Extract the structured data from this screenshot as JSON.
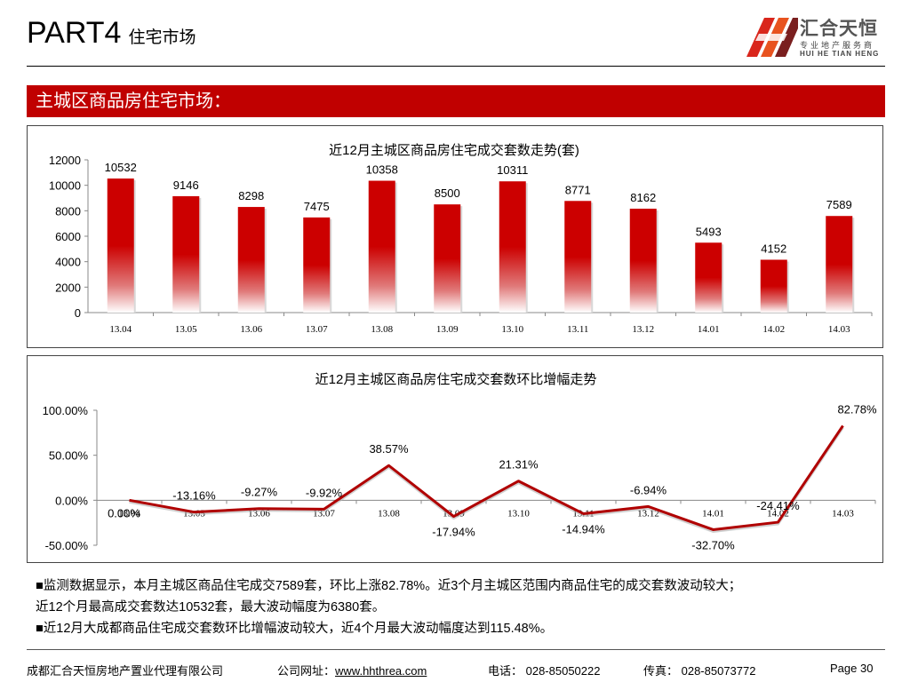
{
  "header": {
    "part": "PART4",
    "subtitle": "住宅市场"
  },
  "logo": {
    "name_cn": "汇合天恒",
    "tagline": "专业地产服务商",
    "name_en": "HUI HE TIAN HENG"
  },
  "section": {
    "title": "主城区商品房住宅市场："
  },
  "colors": {
    "accent": "#c00000",
    "logo_red": "#d9261c"
  },
  "chart_data": [
    {
      "type": "bar",
      "title": "近12月主城区商品房住宅成交套数走势(套)",
      "categories": [
        "13.04",
        "13.05",
        "13.06",
        "13.07",
        "13.08",
        "13.09",
        "13.10",
        "13.11",
        "13.12",
        "14.01",
        "14.02",
        "14.03"
      ],
      "values": [
        10532,
        9146,
        8298,
        7475,
        10358,
        8500,
        10311,
        8771,
        8162,
        5493,
        4152,
        7589
      ],
      "ylim": [
        0,
        12000
      ],
      "yticks": [
        "0",
        "2000",
        "4000",
        "6000",
        "8000",
        "10000",
        "12000"
      ],
      "data_labels": [
        "10532",
        "9146",
        "8298",
        "7475",
        "10358",
        "8500",
        "10311",
        "8771",
        "8162",
        "5493",
        "4152",
        "7589"
      ],
      "xlabel": "",
      "ylabel": "",
      "grid": false
    },
    {
      "type": "line",
      "title": "近12月主城区商品房住宅成交套数环比增幅走势",
      "categories": [
        "13.04",
        "13.05",
        "13.06",
        "13.07",
        "13.08",
        "13.09",
        "13.10",
        "13.11",
        "13.12",
        "14.01",
        "14.02",
        "14.03"
      ],
      "values": [
        0.0,
        -13.16,
        -9.27,
        -9.92,
        38.57,
        -17.94,
        21.31,
        -14.94,
        -6.94,
        -32.7,
        -24.41,
        82.78
      ],
      "ylim": [
        -50,
        100
      ],
      "yticks": [
        "-50.00%",
        "0.00%",
        "50.00%",
        "100.00%"
      ],
      "data_labels": [
        "0.00%",
        "-13.16%",
        "-9.27%",
        "-9.92%",
        "38.57%",
        "-17.94%",
        "21.31%",
        "-14.94%",
        "-6.94%",
        "-32.70%",
        "-24.41%",
        "82.78%"
      ],
      "xlabel": "",
      "ylabel": "",
      "grid": false
    }
  ],
  "notes": [
    "■监测数据显示，本月主城区商品住宅成交7589套，环比上涨82.78%。近3个月主城区范围内商品住宅的成交套数波动较大；",
    "近12个月最高成交套数达10532套，最大波动幅度为6380套。",
    "■近12月大成都商品住宅成交套数环比增幅波动较大，近4个月最大波动幅度达到115.48%。"
  ],
  "footer": {
    "company": "成都汇合天恒房地产置业代理有限公司",
    "website_label": "公司网址：",
    "website": "www.hhthrea.com",
    "phone": "电话： 028-85050222",
    "fax": "传真： 028-85073772",
    "page": "Page 30"
  }
}
